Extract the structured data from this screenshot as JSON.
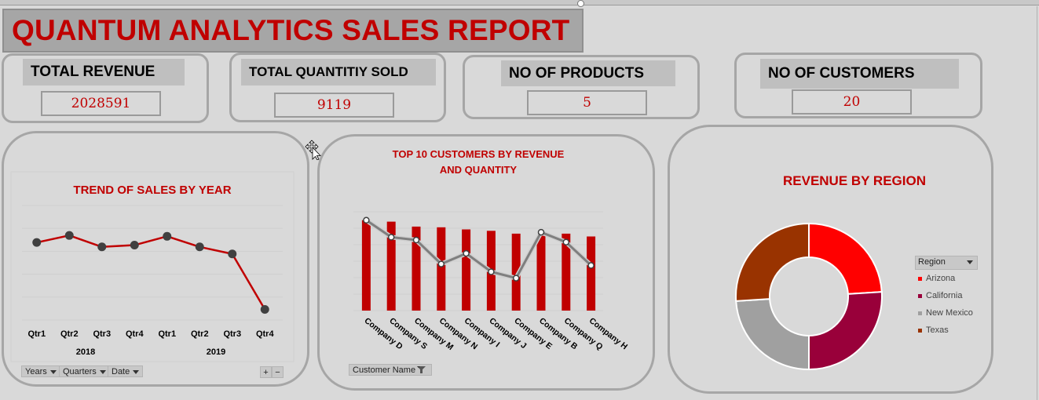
{
  "title": "QUANTUM ANALYTICS SALES REPORT",
  "kpis": {
    "revenue": {
      "label": "TOTAL REVENUE",
      "value": "2028591"
    },
    "quantity": {
      "label": "TOTAL QUANTITIY SOLD",
      "value": "9119"
    },
    "products": {
      "label": "NO OF PRODUCTS",
      "value": "5"
    },
    "customers": {
      "label": "NO OF  CUSTOMERS",
      "value": "20"
    }
  },
  "trend_buttons": {
    "years": "Years",
    "quarters": "Quarters",
    "date": "Date",
    "plus": "+",
    "minus": "−"
  },
  "customer_filter_label": "Customer Name",
  "legend_header": "Region",
  "colors": {
    "accent": "#c00000",
    "arizona": "#ff0000",
    "california": "#99003a",
    "new_mexico": "#a0a0a0",
    "texas": "#993300",
    "line_grey": "#7f7f7f"
  },
  "chart_data": [
    {
      "type": "line",
      "title": "TREND OF SALES BY YEAR",
      "categories": [
        "Qtr1",
        "Qtr2",
        "Qtr3",
        "Qtr4",
        "Qtr1",
        "Qtr2",
        "Qtr3",
        "Qtr4"
      ],
      "groups": [
        {
          "name": "2018",
          "span": 4
        },
        {
          "name": "2019",
          "span": 4
        }
      ],
      "series": [
        {
          "values": [
            290000,
            330000,
            265000,
            275000,
            325000,
            265000,
            225000,
            -90000
          ]
        }
      ],
      "ylim": [
        -150000,
        500000
      ],
      "grid": true
    },
    {
      "type": "bar",
      "title_lines": [
        "TOP 10 CUSTOMERS BY REVENUE",
        "AND QUANTITY"
      ],
      "categories": [
        "Company D",
        "Company S",
        "Company M",
        "Company N",
        "Company I",
        "Company J",
        "Company E",
        "Company B",
        "Company Q",
        "Company H"
      ],
      "series": [
        {
          "type": "bar",
          "values": [
            128,
            126,
            119,
            118,
            115,
            113,
            109,
            106,
            109,
            105
          ]
        },
        {
          "type": "line",
          "values": [
            128,
            104,
            100,
            66,
            81,
            55,
            46,
            111,
            97,
            64
          ]
        }
      ],
      "ylim": [
        0,
        140
      ],
      "grid": true
    },
    {
      "type": "pie",
      "title": "REVENUE BY REGION",
      "donut": true,
      "categories": [
        "Arizona",
        "California",
        "New Mexico",
        "Texas"
      ],
      "values": [
        24,
        26,
        24,
        26
      ],
      "legend": "right"
    }
  ]
}
